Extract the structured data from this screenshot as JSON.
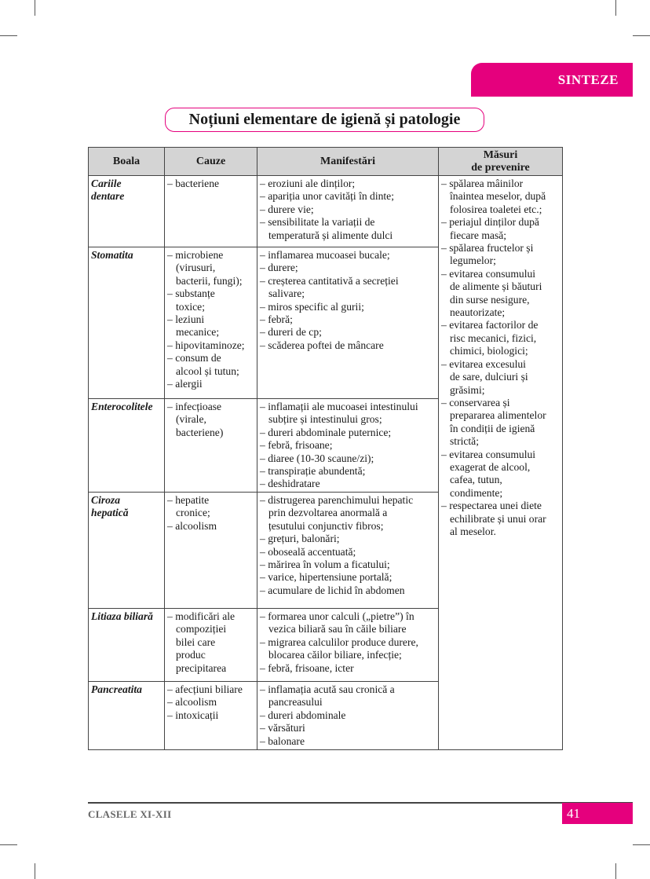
{
  "section_tab": "SINTEZE",
  "title": "Noțiuni elementare de igienă și patologie",
  "table": {
    "headers": [
      "Boala",
      "Cauze",
      "Manifestări",
      "Măsuri\nde prevenire"
    ],
    "rows": [
      {
        "disease": "Cariile\ndentare",
        "causes": [
          "bacteriene"
        ],
        "manifestations": [
          "eroziuni ale dinților;",
          "apariția unor cavități în dinte;",
          "durere vie;",
          "sensibilitate la variații de\ntemperatură și alimente dulci"
        ]
      },
      {
        "disease": "Stomatita",
        "causes": [
          "microbiene\n(virusuri,\nbacterii, fungi);",
          "substanțe\ntoxice;",
          "leziuni\nmecanice;",
          "hipovitaminoze;",
          "consum de\nalcool și tutun;",
          "alergii"
        ],
        "manifestations": [
          "inflamarea mucoasei bucale;",
          "durere;",
          "creșterea cantitativă a secreției\nsalivare;",
          "miros specific al gurii;",
          "febră;",
          "dureri de cp;",
          "scăderea poftei de mâncare"
        ]
      },
      {
        "disease": "Enterocolitele",
        "causes": [
          "infecțioase\n(virale,\nbacteriene)"
        ],
        "manifestations": [
          "inflamații ale mucoasei intestinului\nsubțire și intestinului gros;",
          "dureri abdominale puternice;",
          "febră, frisoane;",
          "diaree (10-30 scaune/zi);",
          "transpirație abundentă;",
          "deshidratare"
        ]
      },
      {
        "disease": "Ciroza\nhepatică",
        "causes": [
          "hepatite\ncronice;",
          "alcoolism"
        ],
        "manifestations": [
          "distrugerea parenchimului hepatic\nprin dezvoltarea anormală a\nțesutului conjunctiv fibros;",
          "grețuri, balonări;",
          "oboseală accentuată;",
          "mărirea în volum a ficatului;",
          "varice, hipertensiune portală;",
          "acumulare de lichid în abdomen"
        ]
      },
      {
        "disease": "Litiaza biliară",
        "causes": [
          "modificări ale\ncompoziției\nbilei care\nproduc\nprecipitarea"
        ],
        "manifestations": [
          "formarea unor calculi („pietre”) în\nvezica biliară sau în căile biliare",
          "migrarea calculilor produce durere,\nblocarea căilor biliare, infecție;",
          "febră, frisoane, icter"
        ]
      },
      {
        "disease": "Pancreatita",
        "causes": [
          "afecțiuni biliare",
          "alcoolism",
          "intoxicații"
        ],
        "manifestations": [
          "inflamația acută sau cronică a\npancreasului",
          "dureri abdominale",
          "vărsături",
          "balonare"
        ]
      }
    ],
    "prevention": [
      "spălarea mâinilor\nînaintea meselor, după\nfolosirea toaletei etc.;",
      "periajul dinților după\nfiecare masă;",
      "spălarea fructelor și\nlegumelor;",
      "evitarea consumului\nde alimente și băuturi\ndin surse nesigure,\nneautorizate;",
      "evitarea factorilor de\nrisc mecanici, fizici,\nchimici, biologici;",
      "evitarea excesului\nde sare, dulciuri și\ngrăsimi;",
      "conservarea și\nprepararea alimentelor\nîn condiții de igienă\nstrictă;",
      "evitarea consumului\nexagerat de alcool,\ncafea, tutun,\ncondimente;",
      "respectarea unei diete\nechilibrate și unui orar\nal meselor."
    ]
  },
  "footer": {
    "left": "CLASELE XI-XII",
    "page": "41"
  },
  "colors": {
    "accent": "#e5007d",
    "header_bg": "#d4d4d4"
  }
}
